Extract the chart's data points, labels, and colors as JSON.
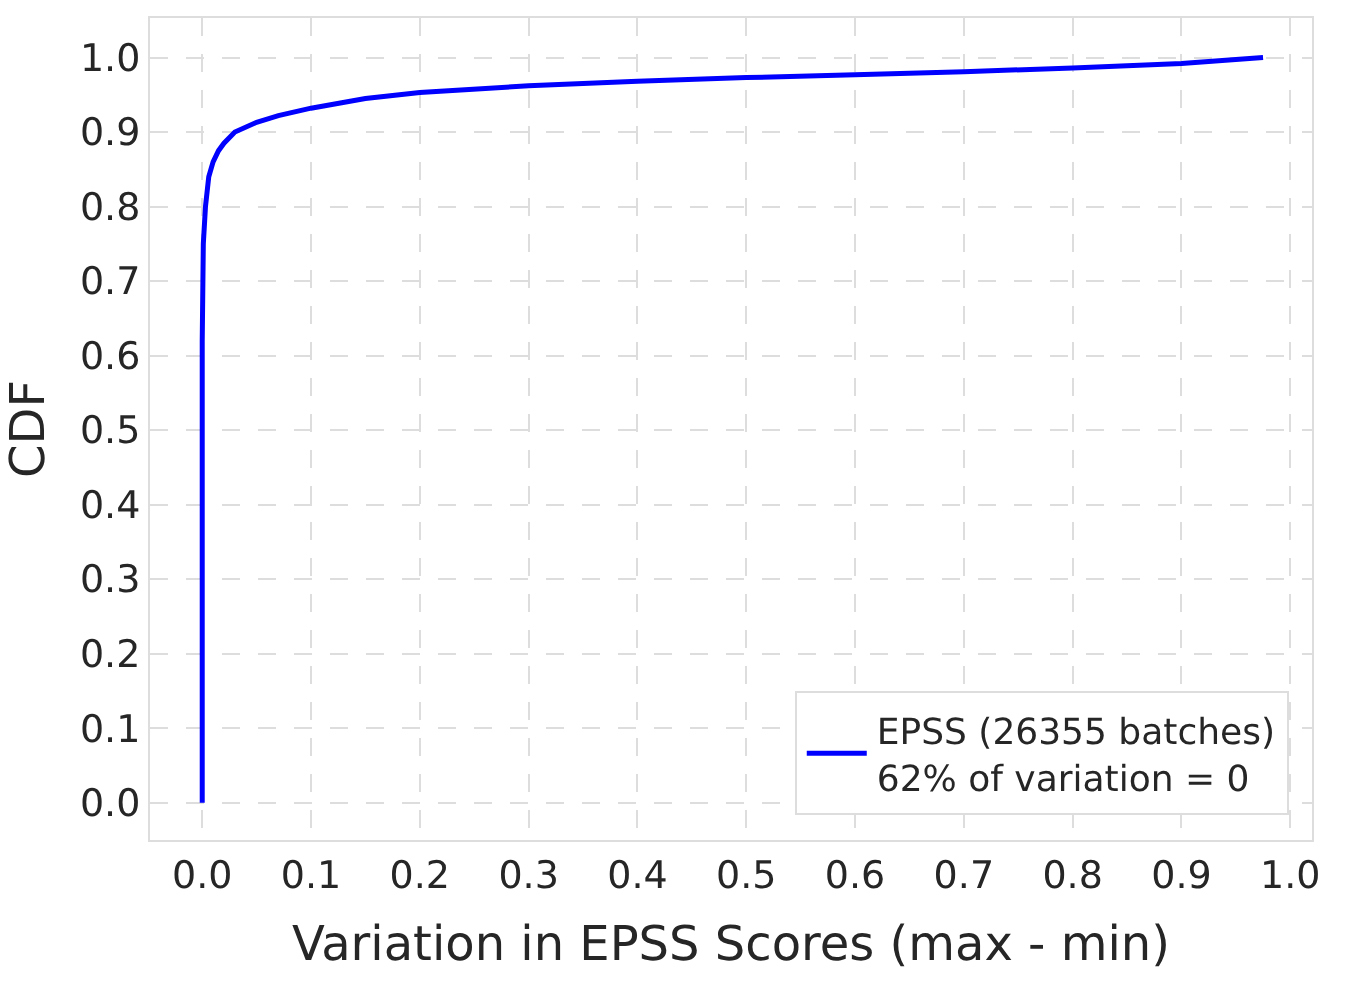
{
  "chart_data": {
    "type": "line",
    "xlabel": "Variation in EPSS Scores (max - min)",
    "ylabel": "CDF",
    "series": [
      {
        "name": "EPSS (26355 batches)\n62% of variation = 0",
        "color": "#0000ff",
        "x": [
          0,
          0,
          0.001,
          0.003,
          0.006,
          0.01,
          0.015,
          0.02,
          0.03,
          0.05,
          0.07,
          0.1,
          0.15,
          0.2,
          0.3,
          0.4,
          0.5,
          0.6,
          0.7,
          0.8,
          0.9,
          0.975
        ],
        "values": [
          0,
          0.62,
          0.75,
          0.8,
          0.84,
          0.86,
          0.875,
          0.885,
          0.9,
          0.913,
          0.922,
          0.932,
          0.945,
          0.953,
          0.962,
          0.968,
          0.973,
          0.977,
          0.981,
          0.986,
          0.992,
          1.0
        ]
      }
    ],
    "xlim": [
      -0.048,
      1.02
    ],
    "ylim": [
      -0.05,
      1.053
    ],
    "xticks": [
      {
        "value": 0,
        "label": "0.0"
      },
      0.1,
      0.2,
      0.3,
      0.4,
      0.5,
      0.6,
      0.7,
      0.8,
      0.9,
      {
        "value": 1,
        "label": "1.0"
      }
    ],
    "yticks": [
      {
        "value": 0,
        "label": "0.0"
      },
      0.1,
      0.2,
      0.3,
      0.4,
      0.5,
      0.6,
      0.7,
      0.8,
      0.9,
      {
        "value": 1,
        "label": "1.0"
      }
    ],
    "grid": true,
    "legend": "bottom right",
    "line_style": "solid",
    "marker": "none"
  }
}
